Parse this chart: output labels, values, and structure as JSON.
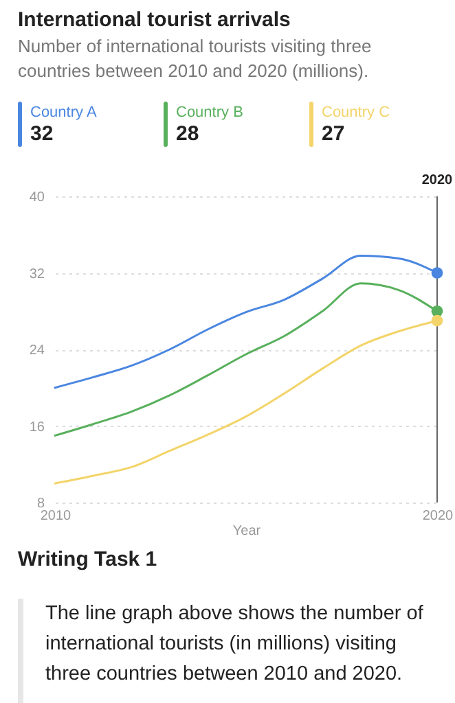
{
  "chart_data": {
    "type": "line",
    "title": "International tourist arrivals",
    "subtitle": "Number of international tourists visiting three countries between 2010 and 2020 (millions).",
    "xlabel": "Year",
    "x": [
      2010,
      2011,
      2012,
      2013,
      2014,
      2015,
      2016,
      2017,
      2018,
      2019,
      2020
    ],
    "series": [
      {
        "name": "Country A",
        "color": "#4a86e0",
        "values": [
          20,
          21.1,
          22.3,
          24,
          26.1,
          27.9,
          29.2,
          31.4,
          33.8,
          33.5,
          32
        ]
      },
      {
        "name": "Country B",
        "color": "#58b05c",
        "values": [
          15,
          16.2,
          17.5,
          19.2,
          21.3,
          23.5,
          25.4,
          28,
          30.9,
          30.2,
          28
        ]
      },
      {
        "name": "Country C",
        "color": "#f3d46a",
        "values": [
          10,
          10.8,
          11.7,
          13.4,
          15.1,
          17,
          19.4,
          22,
          24.4,
          25.9,
          27
        ]
      }
    ],
    "xlim": [
      2010,
      2020
    ],
    "xticks": [
      2010,
      2020
    ],
    "ylim": [
      8,
      40
    ],
    "yticks": [
      8,
      16,
      24,
      32,
      40
    ],
    "ref_lines": [
      {
        "axis": "x",
        "value": 2020,
        "label": "2020",
        "color": "#666666"
      }
    ],
    "grid": "y",
    "legend": "top",
    "marker": "none",
    "line_style": "solid",
    "annotations": [
      "32",
      "28",
      "27",
      "Writing Task 1",
      "The line graph above shows the number of international tourists (in millions) visiting three countries between 2010 and 2020."
    ]
  }
}
